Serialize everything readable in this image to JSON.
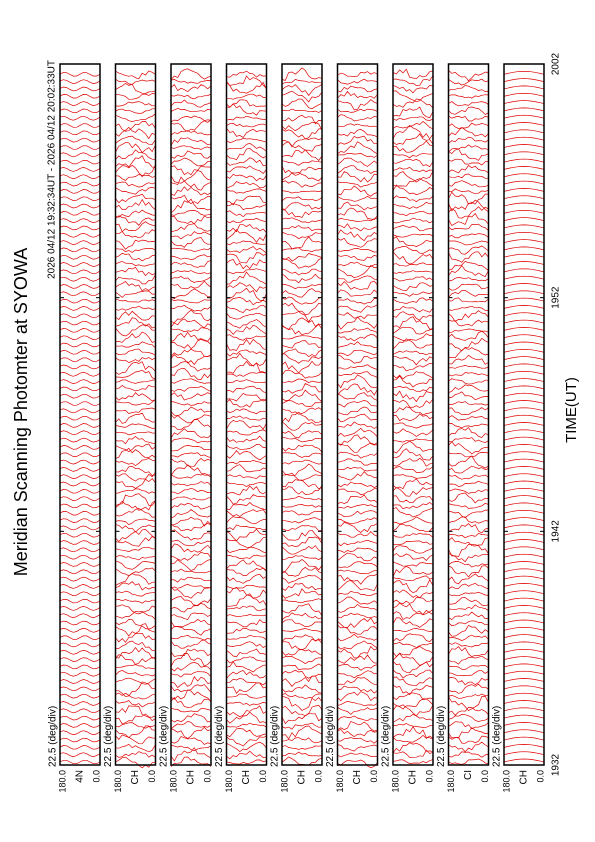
{
  "chart_data": {
    "type": "msp",
    "title": "Meridian Scanning Photomter at SYOWA",
    "subtitle": "2026 04/12 19:32:34UT - 2026 04/12 20:02:33UT",
    "x_label": "TIME(UT)",
    "time_ticks": [
      "1932",
      "1942",
      "1952",
      "2002"
    ],
    "color": "#e00000",
    "panels": [
      {
        "channel": "4N",
        "scale": "22.5 (deg/div)",
        "yticks": [
          {
            "value": 180,
            "label": "180.0"
          },
          {
            "value": 0,
            "label": "0.0"
          }
        ]
      },
      {
        "channel": "CH",
        "scale": "22.5 (deg/div)",
        "yticks": [
          {
            "value": 180,
            "label": "180.0"
          },
          {
            "value": 0,
            "label": "0.0"
          }
        ]
      },
      {
        "channel": "CH",
        "scale": "22.5 (deg/div)",
        "yticks": [
          {
            "value": 180,
            "label": "180.0"
          },
          {
            "value": 0,
            "label": "0.0"
          }
        ]
      },
      {
        "channel": "CH",
        "scale": "22.5 (deg/div)",
        "yticks": [
          {
            "value": 180,
            "label": "180.0"
          },
          {
            "value": 0,
            "label": "0.0"
          }
        ]
      },
      {
        "channel": "CH",
        "scale": "22.5 (deg/div)",
        "yticks": [
          {
            "value": 180,
            "label": "180.0"
          },
          {
            "value": 0,
            "label": "0.0"
          }
        ]
      },
      {
        "channel": "CH",
        "scale": "22.5 (deg/div)",
        "yticks": [
          {
            "value": 180,
            "label": "180.0"
          },
          {
            "value": 0,
            "label": "0.0"
          }
        ]
      },
      {
        "channel": "CH",
        "scale": "22.5 (deg/div)",
        "yticks": [
          {
            "value": 180,
            "label": "180.0"
          },
          {
            "value": 0,
            "label": "0.0"
          }
        ]
      },
      {
        "channel": "CI",
        "scale": "22.5 (deg/div)",
        "yticks": [
          {
            "value": 180,
            "label": "180.0"
          },
          {
            "value": 0,
            "label": "0.0"
          }
        ]
      },
      {
        "channel": "CH",
        "scale": "22.5 (deg/div)",
        "yticks": [
          {
            "value": 180,
            "label": "180.0"
          },
          {
            "value": 0,
            "label": "0.0"
          }
        ]
      }
    ]
  }
}
